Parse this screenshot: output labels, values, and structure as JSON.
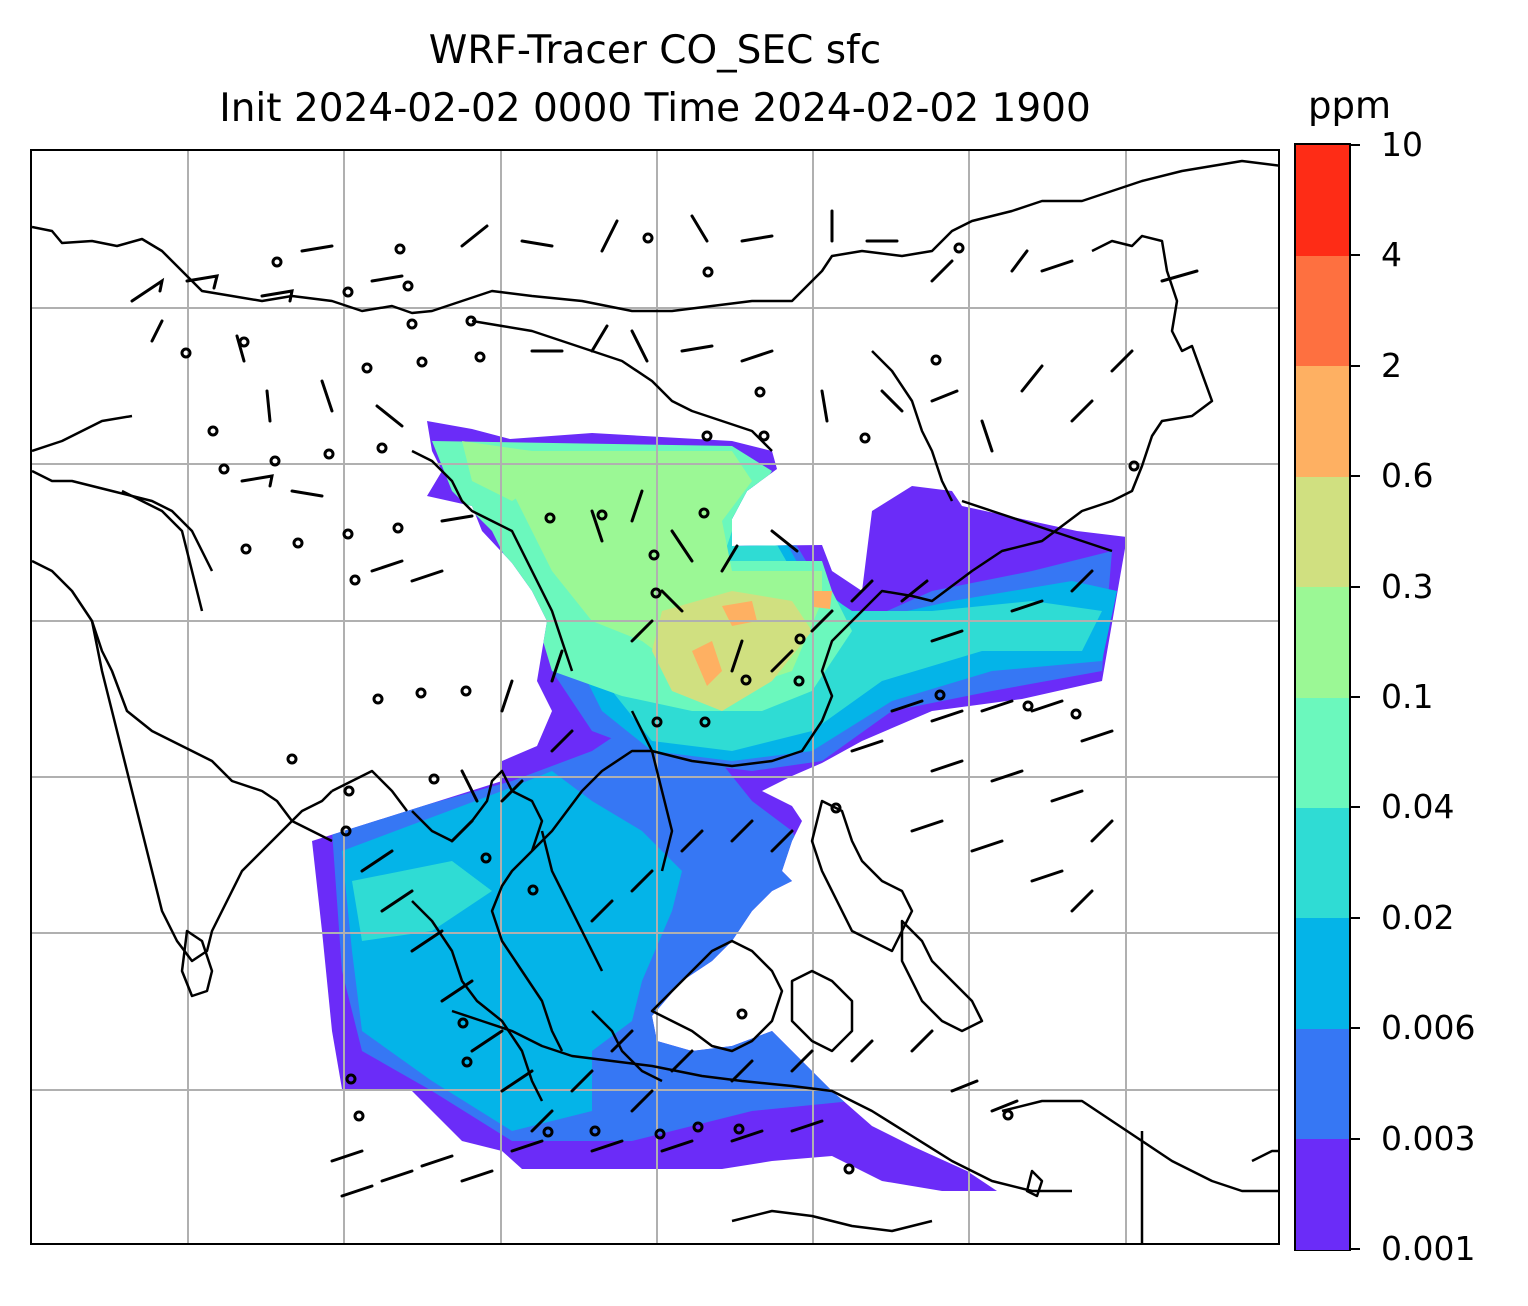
{
  "title": {
    "line1": "WRF-Tracer CO_SEC sfc",
    "line2": "Init 2024-02-02 0000 Time 2024-02-02 1900"
  },
  "colorbar": {
    "unit": "ppm",
    "levels": [
      "0.001",
      "0.003",
      "0.006",
      "0.02",
      "0.04",
      "0.1",
      "0.3",
      "0.6",
      "2",
      "4",
      "10"
    ],
    "colors": [
      "#6b2cf8",
      "#3677f4",
      "#04b4e8",
      "#2fdcd4",
      "#6bf8bd",
      "#9bf895",
      "#d0e080",
      "#feb062",
      "#fe7040",
      "#fe2c16"
    ]
  },
  "map": {
    "background": "#ffffff",
    "coastline_color": "#000000",
    "grid_color": "#b0b0b0",
    "barb_color": "#000000",
    "layers": [
      "coastlines",
      "country-borders",
      "gridlines",
      "tracer-concentration-fill",
      "wind-barbs"
    ]
  }
}
